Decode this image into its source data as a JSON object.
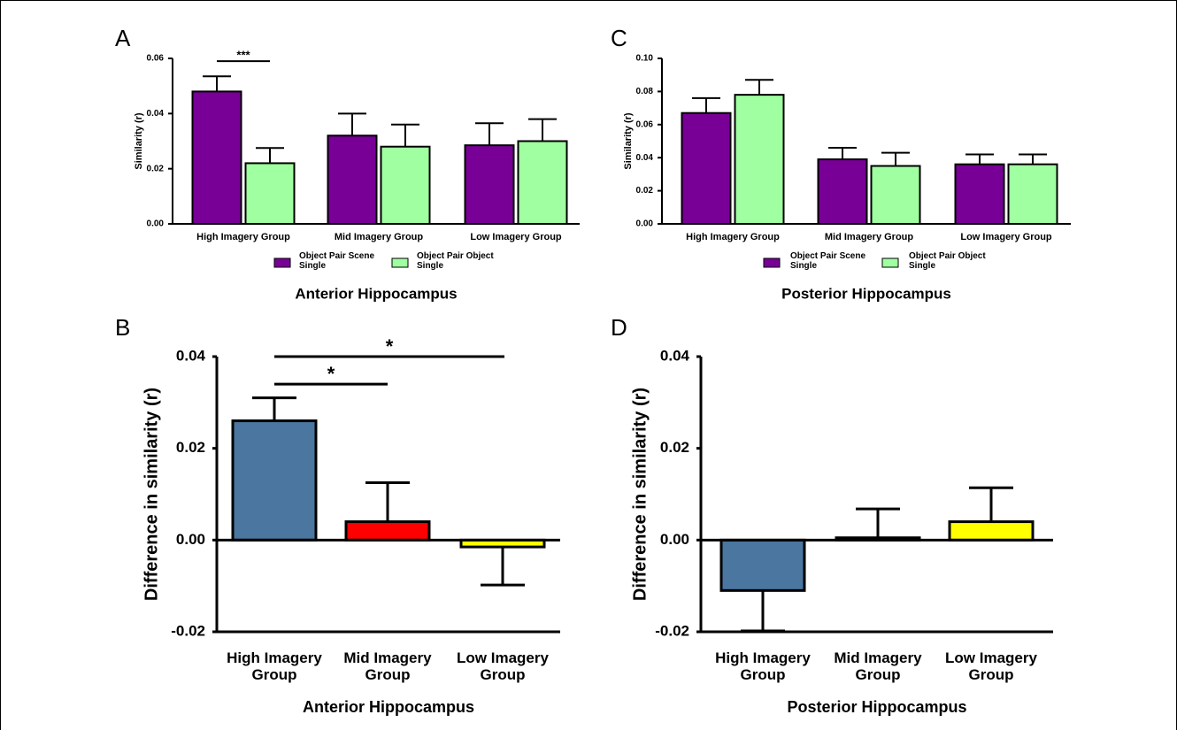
{
  "chart_data": [
    {
      "type": "grouped-bar",
      "panel_label": "A",
      "ylabel": "Similarity (r)",
      "xlabel": "Anterior Hippocampus",
      "categories": [
        "High Imagery Group",
        "Mid Imagery Group",
        "Low Imagery Group"
      ],
      "series": [
        {
          "name": "Object Pair Scene Single",
          "color": "#780096",
          "values": [
            0.048,
            0.032,
            0.0285
          ],
          "errors": [
            0.0055,
            0.008,
            0.008
          ]
        },
        {
          "name": "Object Pair Object Single",
          "color": "#a0ffa0",
          "values": [
            0.022,
            0.028,
            0.03
          ],
          "errors": [
            0.0055,
            0.008,
            0.008
          ]
        }
      ],
      "ylim": [
        0,
        0.06
      ],
      "yticks": [
        {
          "value": 0,
          "label": "0.00"
        },
        {
          "value": 0.02,
          "label": "0.02"
        },
        {
          "value": 0.04,
          "label": "0.04"
        },
        {
          "value": 0.06,
          "label": "0.06"
        }
      ],
      "annotations": [
        "***"
      ]
    },
    {
      "type": "bar",
      "panel_label": "B",
      "ylabel": "Difference in similarity (r)",
      "xlabel": "Anterior Hippocampus",
      "categories": [
        "High Imagery Group",
        "Mid Imagery Group",
        "Low Imagery Group"
      ],
      "values": [
        0.026,
        0.004,
        -0.0015
      ],
      "errors": [
        0.005,
        0.0085,
        0.0083
      ],
      "colors": [
        "#4a76a0",
        "#ff0000",
        "#ffff00"
      ],
      "ylim": [
        -0.02,
        0.04
      ],
      "yticks": [
        {
          "value": -0.02,
          "label": "-0.02"
        },
        {
          "value": 0,
          "label": "0.00"
        },
        {
          "value": 0.02,
          "label": "0.02"
        },
        {
          "value": 0.04,
          "label": "0.04"
        }
      ],
      "annotations": [
        "*",
        "*"
      ]
    },
    {
      "type": "grouped-bar",
      "panel_label": "C",
      "ylabel": "Similarity (r)",
      "xlabel": "Posterior Hippocampus",
      "categories": [
        "High Imagery Group",
        "Mid Imagery Group",
        "Low Imagery Group"
      ],
      "series": [
        {
          "name": "Object Pair Scene Single",
          "color": "#780096",
          "values": [
            0.067,
            0.039,
            0.036
          ],
          "errors": [
            0.009,
            0.007,
            0.006
          ]
        },
        {
          "name": "Object Pair Object Single",
          "color": "#a0ffa0",
          "values": [
            0.078,
            0.035,
            0.036
          ],
          "errors": [
            0.009,
            0.008,
            0.006
          ]
        }
      ],
      "ylim": [
        0,
        0.1
      ],
      "yticks": [
        {
          "value": 0,
          "label": "0.00"
        },
        {
          "value": 0.02,
          "label": "0.02"
        },
        {
          "value": 0.04,
          "label": "0.04"
        },
        {
          "value": 0.06,
          "label": "0.06"
        },
        {
          "value": 0.08,
          "label": "0.08"
        },
        {
          "value": 0.1,
          "label": "0.10"
        }
      ]
    },
    {
      "type": "bar",
      "panel_label": "D",
      "ylabel": "Difference in similarity (r)",
      "xlabel": "Posterior Hippocampus",
      "categories": [
        "High Imagery Group",
        "Mid Imagery Group",
        "Low Imagery Group"
      ],
      "values": [
        -0.011,
        0.0005,
        0.004
      ],
      "errors": [
        0.0088,
        0.0063,
        0.0074
      ],
      "colors": [
        "#4a76a0",
        "#ff0000",
        "#ffff00"
      ],
      "ylim": [
        -0.02,
        0.04
      ],
      "yticks": [
        {
          "value": -0.02,
          "label": "-0.02"
        },
        {
          "value": 0,
          "label": "0.00"
        },
        {
          "value": 0.02,
          "label": "0.02"
        },
        {
          "value": 0.04,
          "label": "0.04"
        }
      ]
    }
  ]
}
